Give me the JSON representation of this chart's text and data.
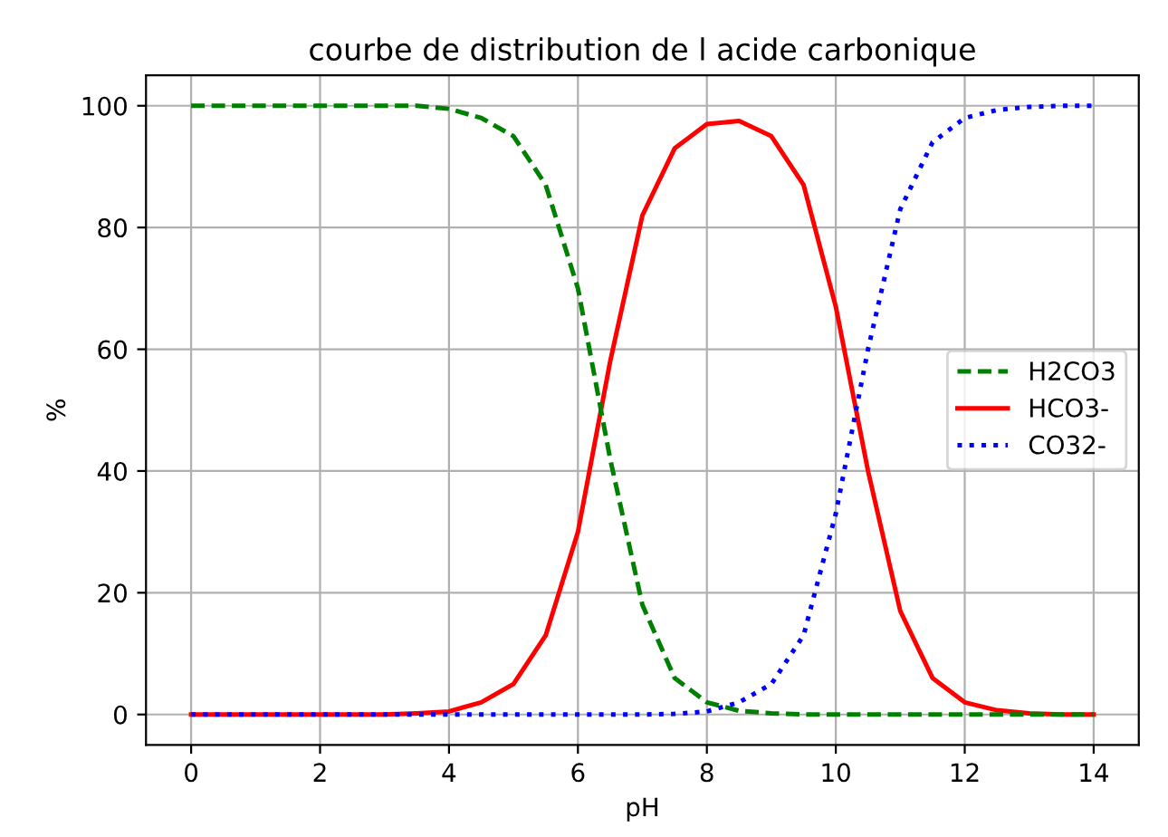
{
  "chart_data": {
    "type": "line",
    "title": "courbe de distribution de l acide carbonique",
    "xlabel": "pH",
    "ylabel": "%",
    "x": [
      0,
      0.5,
      1,
      1.5,
      2,
      2.5,
      3,
      3.5,
      4,
      4.5,
      5,
      5.5,
      6,
      6.5,
      7,
      7.5,
      8,
      8.5,
      9,
      9.5,
      10,
      10.5,
      11,
      11.5,
      12,
      12.5,
      13,
      13.5,
      14
    ],
    "series": [
      {
        "name": "H2CO3",
        "color": "#008000",
        "line_style": "dashed",
        "values": [
          100,
          100,
          100,
          100,
          100,
          100,
          100,
          100,
          99.5,
          98,
          95,
          87,
          70,
          42,
          18,
          6,
          2,
          0.6,
          0.2,
          0,
          0,
          0,
          0,
          0,
          0,
          0,
          0,
          0,
          0
        ]
      },
      {
        "name": "HCO3-",
        "color": "#ff0000",
        "line_style": "solid",
        "values": [
          0,
          0,
          0,
          0,
          0,
          0,
          0,
          0.2,
          0.5,
          2,
          5,
          13,
          30,
          58,
          82,
          93,
          97,
          97.5,
          95,
          87,
          67,
          40,
          17,
          6,
          2,
          0.7,
          0.2,
          0,
          0
        ]
      },
      {
        "name": "CO32-",
        "color": "#0000ff",
        "line_style": "dotted",
        "values": [
          0,
          0,
          0,
          0,
          0,
          0,
          0,
          0,
          0,
          0,
          0,
          0,
          0,
          0,
          0,
          0.1,
          0.5,
          2,
          5,
          13,
          33,
          60,
          83,
          94,
          98,
          99.3,
          99.8,
          100,
          100
        ]
      }
    ],
    "xlim": [
      -0.7,
      14.7
    ],
    "ylim": [
      -5,
      105
    ],
    "xticks": [
      0,
      2,
      4,
      6,
      8,
      10,
      12,
      14
    ],
    "yticks": [
      0,
      20,
      40,
      60,
      80,
      100
    ],
    "grid": true,
    "legend": "center right"
  }
}
